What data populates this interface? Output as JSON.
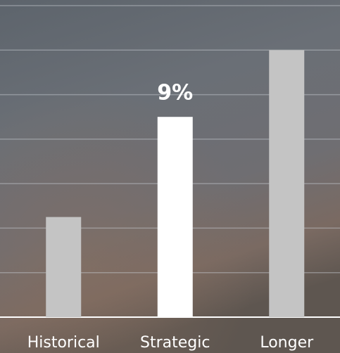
{
  "chart_data": {
    "type": "bar",
    "categories": [
      "Historical",
      "Strategic",
      "Longer"
    ],
    "values": [
      4.5,
      9,
      12
    ],
    "value_labels": [
      null,
      "9%",
      null
    ],
    "colors": [
      "#c4c4c4",
      "#ffffff",
      "#c4c4c4"
    ],
    "ylim": [
      0,
      14
    ],
    "yticks": [
      0,
      2,
      4,
      6,
      8,
      10,
      12,
      14
    ],
    "grid": true
  }
}
